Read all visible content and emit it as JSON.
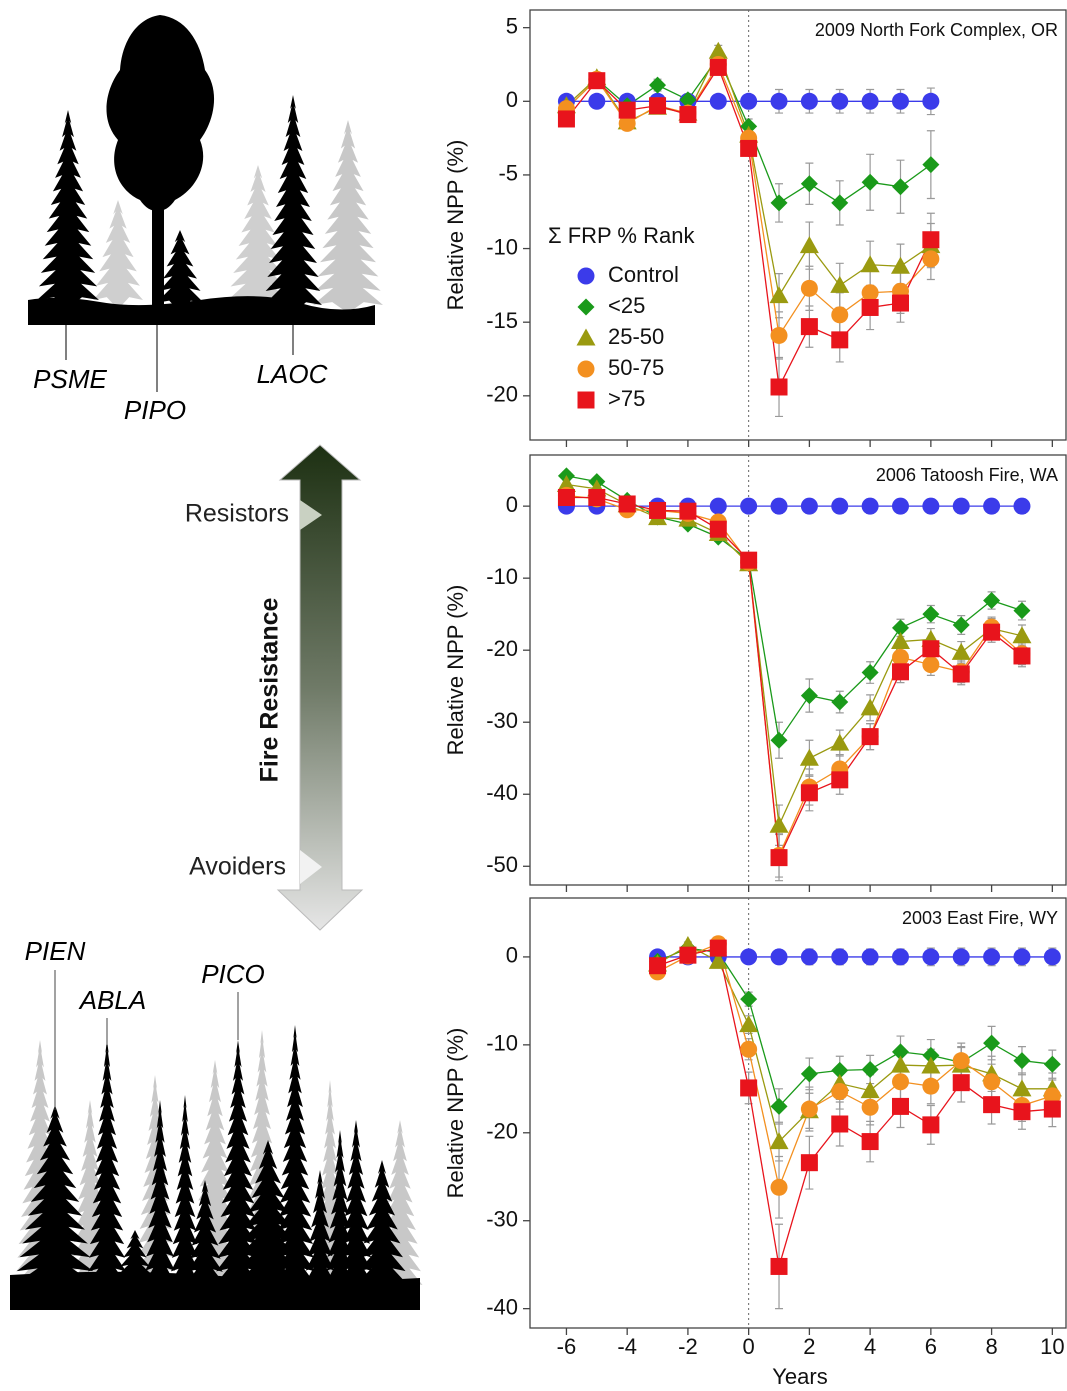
{
  "chart_data": [
    {
      "type": "line",
      "title": "2009 North Fork Complex, OR",
      "ylabel": "Relative NPP (%)",
      "legend_title": "Σ FRP % Rank",
      "xlim": [
        -7.2,
        10.45
      ],
      "xticks": [
        -6,
        -4,
        -2,
        0,
        2,
        4,
        6,
        8,
        10
      ],
      "show_xtick_labels": false,
      "ylim": [
        -23,
        6.2
      ],
      "yticks": [
        -20,
        -15,
        -10,
        -5,
        0,
        5
      ],
      "vline_x": 0,
      "series": [
        {
          "name": "Control",
          "color": "#3b3bea",
          "marker": "circle",
          "x": [
            -6,
            -5,
            -4,
            -3,
            -2,
            -1,
            0,
            1,
            2,
            3,
            4,
            5,
            6
          ],
          "values": [
            0,
            0,
            0,
            0,
            0,
            0,
            0,
            0,
            0,
            0,
            0,
            0,
            0
          ],
          "errors": [
            0.3,
            0.3,
            0.3,
            0.3,
            0.3,
            0.3,
            0.3,
            0.8,
            0.8,
            0.8,
            0.8,
            0.8,
            0.9
          ]
        },
        {
          "name": "<25",
          "color": "#1a9a1a",
          "marker": "diamond",
          "x": [
            -6,
            -5,
            -4,
            -3,
            -2,
            -1,
            0,
            1,
            2,
            3,
            4,
            5,
            6
          ],
          "values": [
            -0.5,
            1.5,
            -0.3,
            1.1,
            0.1,
            3.0,
            -1.7,
            -6.9,
            -5.6,
            -6.9,
            -5.5,
            -5.8,
            -4.3
          ],
          "errors": [
            0.3,
            0.3,
            0.4,
            0.4,
            0.4,
            0.4,
            0.5,
            1.3,
            1.4,
            1.5,
            1.9,
            1.8,
            2.3
          ]
        },
        {
          "name": "25-50",
          "color": "#9a9a10",
          "marker": "triangle",
          "x": [
            -6,
            -5,
            -4,
            -3,
            -2,
            -1,
            0,
            1,
            2,
            3,
            4,
            5,
            6
          ],
          "values": [
            -0.3,
            1.6,
            -1.4,
            -0.4,
            -0.8,
            3.4,
            -2.3,
            -13.2,
            -9.8,
            -12.5,
            -11.1,
            -11.2,
            -9.8
          ],
          "errors": [
            0.3,
            0.3,
            0.4,
            0.3,
            0.3,
            0.4,
            0.5,
            1.5,
            1.6,
            1.5,
            1.6,
            1.5,
            1.5
          ]
        },
        {
          "name": "50-75",
          "color": "#f39020",
          "marker": "circle",
          "x": [
            -6,
            -5,
            -4,
            -3,
            -2,
            -1,
            0,
            1,
            2,
            3,
            4,
            5,
            6
          ],
          "values": [
            -0.5,
            1.5,
            -1.5,
            -0.3,
            -0.8,
            2.5,
            -2.5,
            -15.9,
            -12.7,
            -14.5,
            -13.0,
            -12.9,
            -10.7
          ],
          "errors": [
            0.3,
            0.3,
            0.3,
            0.3,
            0.3,
            0.4,
            0.5,
            1.6,
            1.5,
            1.5,
            1.5,
            1.5,
            1.4
          ]
        },
        {
          "name": ">75",
          "color": "#e8141c",
          "marker": "square",
          "x": [
            -6,
            -5,
            -4,
            -3,
            -2,
            -1,
            0,
            1,
            2,
            3,
            4,
            5,
            6
          ],
          "values": [
            -1.2,
            1.4,
            -0.6,
            -0.3,
            -0.9,
            2.3,
            -3.2,
            -19.4,
            -15.3,
            -16.2,
            -14.0,
            -13.7,
            -9.4
          ],
          "errors": [
            0.3,
            0.3,
            0.3,
            0.3,
            0.3,
            0.4,
            0.5,
            2.0,
            1.4,
            1.5,
            1.5,
            1.3,
            1.8
          ]
        }
      ]
    },
    {
      "type": "line",
      "title": "2006 Tatoosh Fire, WA",
      "ylabel": "Relative NPP (%)",
      "xlim": [
        -7.2,
        10.45
      ],
      "xticks": [
        -6,
        -4,
        -2,
        0,
        2,
        4,
        6,
        8,
        10
      ],
      "show_xtick_labels": false,
      "ylim": [
        -52.6,
        7.1
      ],
      "yticks": [
        -50,
        -40,
        -30,
        -20,
        -10,
        0
      ],
      "vline_x": 0,
      "series": [
        {
          "color": "#3b3bea",
          "marker": "circle",
          "x": [
            -6,
            -5,
            -4,
            -3,
            -2,
            -1,
            0,
            1,
            2,
            3,
            4,
            5,
            6,
            7,
            8,
            9
          ],
          "values": [
            0,
            0,
            0,
            0,
            0,
            0,
            0,
            0,
            0,
            0,
            0,
            0,
            0,
            0,
            0,
            0
          ],
          "errors": [
            0.5,
            0.5,
            0.5,
            0.5,
            0.5,
            0.5,
            0.5,
            1,
            1,
            1,
            1,
            1,
            1,
            1,
            1,
            1
          ]
        },
        {
          "color": "#1a9a1a",
          "marker": "diamond",
          "x": [
            -6,
            -5,
            -4,
            -3,
            -2,
            -1,
            0,
            1,
            2,
            3,
            4,
            5,
            6,
            7,
            8,
            9
          ],
          "values": [
            4.2,
            3.4,
            0.8,
            -1.5,
            -2.5,
            -4.3,
            -7.5,
            -32.5,
            -26.3,
            -27.2,
            -23.1,
            -16.9,
            -15.0,
            -16.5,
            -13.1,
            -14.5
          ],
          "errors": [
            0.6,
            0.5,
            0.5,
            0.5,
            0.5,
            0.6,
            0.8,
            2.5,
            2.3,
            1.5,
            1.5,
            1.2,
            1.2,
            1.3,
            1.2,
            1.3
          ]
        },
        {
          "color": "#9a9a10",
          "marker": "triangle",
          "x": [
            -6,
            -5,
            -4,
            -3,
            -2,
            -1,
            0,
            1,
            2,
            3,
            4,
            5,
            6,
            7,
            8,
            9
          ],
          "values": [
            3.0,
            2.4,
            0.2,
            -1.6,
            -1.8,
            -3.8,
            -8.0,
            -44.3,
            -35.0,
            -32.9,
            -28.0,
            -18.8,
            -18.5,
            -20.3,
            -17.0,
            -18.0
          ],
          "errors": [
            0.6,
            0.5,
            0.5,
            0.5,
            0.5,
            0.6,
            0.8,
            2.8,
            2.5,
            1.8,
            1.8,
            1.5,
            1.5,
            1.5,
            1.4,
            1.5
          ]
        },
        {
          "color": "#f39020",
          "marker": "circle",
          "x": [
            -6,
            -5,
            -4,
            -3,
            -2,
            -1,
            0,
            1,
            2,
            3,
            4,
            5,
            6,
            7,
            8,
            9
          ],
          "values": [
            1.5,
            1.0,
            -0.5,
            -0.6,
            -1.0,
            -2.2,
            -7.8,
            -48.5,
            -39.0,
            -36.5,
            -32.0,
            -21.0,
            -22.0,
            -23.0,
            -16.8,
            -20.5
          ],
          "errors": [
            0.6,
            0.5,
            0.5,
            0.5,
            0.5,
            0.6,
            0.8,
            3.0,
            2.5,
            2.0,
            1.8,
            1.5,
            1.5,
            1.5,
            1.4,
            1.5
          ]
        },
        {
          "color": "#e8141c",
          "marker": "square",
          "x": [
            -6,
            -5,
            -4,
            -3,
            -2,
            -1,
            0,
            1,
            2,
            3,
            4,
            5,
            6,
            7,
            8,
            9
          ],
          "values": [
            1.2,
            1.2,
            0.3,
            -0.6,
            -0.7,
            -3.2,
            -7.5,
            -48.8,
            -39.8,
            -38.0,
            -32.0,
            -23.0,
            -19.8,
            -23.3,
            -17.5,
            -20.8
          ],
          "errors": [
            0.6,
            0.5,
            0.5,
            0.5,
            0.5,
            0.6,
            0.8,
            3.2,
            2.5,
            2.0,
            1.8,
            1.5,
            1.5,
            1.5,
            1.4,
            1.5
          ]
        }
      ]
    },
    {
      "type": "line",
      "title": "2003 East Fire, WY",
      "ylabel": "Relative NPP (%)",
      "xlabel": "Years",
      "xlim": [
        -7.2,
        10.45
      ],
      "xticks": [
        -6,
        -4,
        -2,
        0,
        2,
        4,
        6,
        8,
        10
      ],
      "show_xtick_labels": true,
      "ylim": [
        -42.2,
        6.7
      ],
      "yticks": [
        -40,
        -30,
        -20,
        -10,
        0
      ],
      "vline_x": 0,
      "series": [
        {
          "color": "#3b3bea",
          "marker": "circle",
          "x": [
            -3,
            -2,
            -1,
            0,
            1,
            2,
            3,
            4,
            5,
            6,
            7,
            8,
            9,
            10
          ],
          "values": [
            0,
            0,
            0,
            0,
            0,
            0,
            0,
            0,
            0,
            0,
            0,
            0,
            0,
            0
          ],
          "errors": [
            0.3,
            0.3,
            0.3,
            0.3,
            0.8,
            0.9,
            0.9,
            0.9,
            0.9,
            1.0,
            1.0,
            1.0,
            1.0,
            1.0
          ]
        },
        {
          "color": "#1a9a1a",
          "marker": "diamond",
          "x": [
            -3,
            -2,
            -1,
            0,
            1,
            2,
            3,
            4,
            5,
            6,
            7,
            8,
            9,
            10
          ],
          "values": [
            -0.5,
            1.0,
            0.5,
            -4.8,
            -17.0,
            -13.3,
            -12.9,
            -12.8,
            -10.8,
            -11.2,
            -12.0,
            -9.8,
            -11.8,
            -12.2
          ],
          "errors": [
            0.4,
            0.4,
            0.5,
            0.8,
            2.0,
            1.8,
            1.6,
            1.6,
            1.8,
            1.8,
            1.8,
            1.9,
            1.6,
            1.6
          ]
        },
        {
          "color": "#9a9a10",
          "marker": "triangle",
          "x": [
            -3,
            -2,
            -1,
            0,
            1,
            2,
            3,
            4,
            5,
            6,
            7,
            8,
            9,
            10
          ],
          "values": [
            -0.8,
            1.3,
            -0.5,
            -7.7,
            -21.0,
            -17.5,
            -14.4,
            -15.2,
            -12.3,
            -12.4,
            -12.3,
            -13.3,
            -15.0,
            -15.0
          ],
          "errors": [
            0.4,
            0.4,
            0.5,
            1.0,
            2.2,
            2.0,
            1.8,
            1.8,
            1.9,
            1.9,
            2.0,
            2.0,
            1.8,
            1.8
          ]
        },
        {
          "color": "#f39020",
          "marker": "circle",
          "x": [
            -3,
            -2,
            -1,
            0,
            1,
            2,
            3,
            4,
            5,
            6,
            7,
            8,
            9,
            10
          ],
          "values": [
            -1.7,
            0.1,
            1.5,
            -10.5,
            -26.2,
            -17.3,
            -15.3,
            -17.1,
            -14.2,
            -14.7,
            -11.8,
            -14.2,
            -16.9,
            -15.8
          ],
          "errors": [
            0.4,
            0.4,
            0.5,
            1.2,
            3.5,
            2.5,
            2.0,
            2.0,
            2.0,
            2.0,
            2.0,
            2.0,
            1.8,
            1.8
          ]
        },
        {
          "color": "#e8141c",
          "marker": "square",
          "x": [
            -3,
            -2,
            -1,
            0,
            1,
            2,
            3,
            4,
            5,
            6,
            7,
            8,
            9,
            10
          ],
          "values": [
            -1.0,
            0.2,
            1.0,
            -14.9,
            -35.2,
            -23.4,
            -19.0,
            -21.0,
            -17.0,
            -19.1,
            -14.3,
            -16.8,
            -17.6,
            -17.3
          ],
          "errors": [
            0.4,
            0.4,
            0.5,
            1.8,
            4.8,
            3.0,
            2.5,
            2.3,
            2.4,
            2.2,
            2.2,
            2.2,
            2.0,
            2.0
          ]
        }
      ]
    }
  ],
  "illustration": {
    "upper_labels": [
      "PSME",
      "PIPO",
      "LAOC"
    ],
    "arrow_label": "Fire Resistance",
    "top_label": "Resistors",
    "bottom_label": "Avoiders",
    "lower_labels": [
      "PIEN",
      "ABLA",
      "PICO"
    ]
  }
}
